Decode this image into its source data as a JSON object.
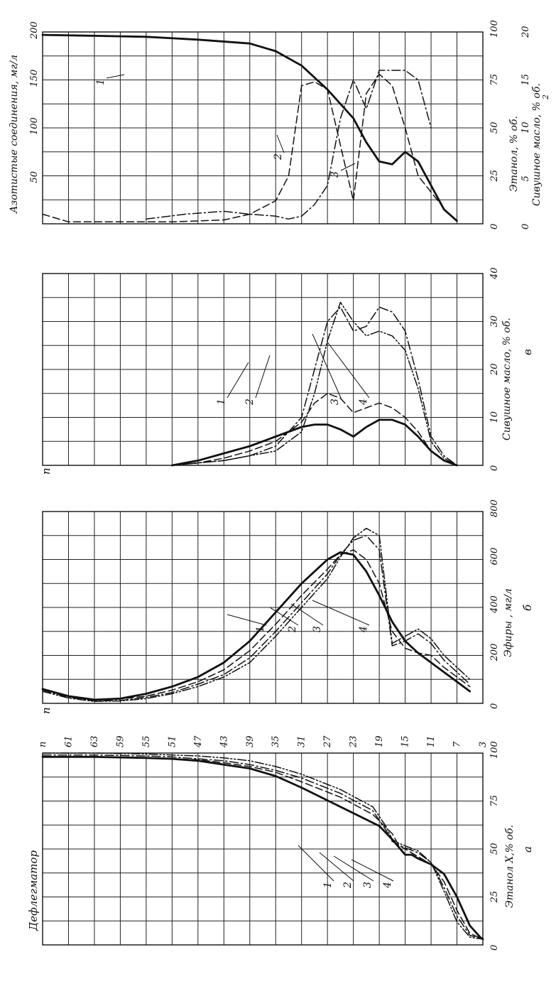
{
  "chart_data": [
    {
      "id": "a",
      "type": "line",
      "panel_letter": "а",
      "corner_label": "п",
      "header_label": "Дефлегматор",
      "xlabel": "Этанол X,% об.",
      "x_tick_labels": [
        "0",
        "25",
        "50",
        "75",
        "100"
      ],
      "plate_labels": [
        "п",
        "61",
        "63",
        "59",
        "55",
        "51",
        "47",
        "43",
        "39",
        "35",
        "31",
        "27",
        "23",
        "19",
        "15",
        "11",
        "7",
        "3"
      ],
      "xlim": [
        0,
        100
      ],
      "grid": true,
      "curve_labels": [
        "1",
        "2",
        "3",
        "4"
      ],
      "series": [
        {
          "name": "1",
          "style": "solid",
          "x": [
            98,
            98,
            97.5,
            97,
            96,
            94,
            92,
            88,
            82,
            72,
            62,
            55,
            47,
            47,
            45,
            42,
            37,
            25,
            10,
            4,
            3
          ],
          "y": [
            0,
            4,
            8,
            10,
            12,
            14,
            16,
            18,
            20,
            23,
            26,
            27,
            28,
            28.5,
            29,
            30,
            31,
            32,
            33,
            33.8,
            34
          ]
        },
        {
          "name": "2",
          "style": "dashed",
          "x": [
            98,
            98,
            97.5,
            97,
            96.5,
            95,
            93,
            90,
            85,
            77,
            68,
            58,
            52,
            50,
            46,
            42,
            33,
            18,
            6,
            3
          ],
          "y": [
            0,
            4,
            8,
            10,
            12,
            14,
            16,
            18,
            20,
            23,
            25.5,
            27,
            27.5,
            28,
            29,
            30,
            31,
            32,
            33,
            34
          ]
        },
        {
          "name": "3",
          "style": "dashdot",
          "x": [
            99,
            99,
            98.5,
            98,
            97,
            96,
            94,
            91,
            87,
            79,
            70,
            60,
            54,
            52,
            48,
            43,
            30,
            15,
            5,
            3
          ],
          "y": [
            0,
            4,
            8,
            10,
            12,
            14,
            16,
            18,
            20,
            23,
            25.5,
            26.5,
            27,
            27.5,
            29,
            30,
            31,
            32,
            33,
            34
          ]
        },
        {
          "name": "4",
          "style": "dashdotdot",
          "x": [
            100,
            100,
            99.5,
            99,
            98.5,
            97.5,
            96,
            93,
            89,
            81,
            72,
            62,
            55,
            53,
            49,
            43,
            28,
            12,
            4,
            3
          ],
          "y": [
            0,
            4,
            8,
            10,
            12,
            14,
            16,
            18,
            20,
            23,
            25.5,
            26.5,
            27,
            27.5,
            29,
            30,
            31,
            32,
            33,
            34
          ]
        }
      ]
    },
    {
      "id": "b",
      "type": "line",
      "panel_letter": "б",
      "corner_label": "п",
      "xlabel": "Эфиры , мг/л",
      "x_tick_labels": [
        "0",
        "200",
        "400",
        "600",
        "800"
      ],
      "xlim": [
        0,
        800
      ],
      "grid": true,
      "curve_labels": [
        "1",
        "2",
        "3",
        "4"
      ],
      "series": [
        {
          "name": "1",
          "style": "solid",
          "x": [
            60,
            30,
            15,
            20,
            40,
            70,
            110,
            170,
            260,
            380,
            500,
            600,
            630,
            620,
            550,
            450,
            340,
            260,
            210,
            170,
            130,
            90,
            50
          ],
          "y": [
            0,
            2,
            4,
            6,
            8,
            10,
            12,
            14,
            16,
            18,
            20,
            22,
            23,
            24,
            25,
            26,
            27,
            28,
            29,
            30,
            31,
            32,
            33
          ]
        },
        {
          "name": "2",
          "style": "dashed",
          "x": [
            60,
            30,
            15,
            18,
            30,
            55,
            90,
            140,
            220,
            330,
            450,
            560,
            620,
            640,
            600,
            500,
            300,
            230,
            210,
            200,
            150,
            110,
            70
          ],
          "y": [
            0,
            2,
            4,
            6,
            8,
            10,
            12,
            14,
            16,
            18,
            20,
            22,
            23,
            24,
            25,
            26,
            27,
            28,
            29,
            30,
            31,
            32,
            33
          ]
        },
        {
          "name": "3",
          "style": "dashdot",
          "x": [
            55,
            25,
            10,
            12,
            25,
            45,
            80,
            120,
            190,
            300,
            420,
            540,
            620,
            680,
            700,
            640,
            240,
            260,
            290,
            250,
            180,
            130,
            80
          ],
          "y": [
            0,
            2,
            4,
            6,
            8,
            10,
            12,
            14,
            16,
            18,
            20,
            22,
            23,
            24,
            25,
            26,
            27,
            28,
            29,
            30,
            31,
            32,
            33
          ]
        },
        {
          "name": "4",
          "style": "dashdotdot",
          "x": [
            50,
            22,
            8,
            10,
            20,
            40,
            70,
            110,
            170,
            280,
            400,
            520,
            610,
            690,
            730,
            700,
            250,
            280,
            310,
            270,
            200,
            150,
            100
          ],
          "y": [
            0,
            2,
            4,
            6,
            8,
            10,
            12,
            14,
            16,
            18,
            20,
            22,
            23,
            24,
            25,
            26,
            27,
            28,
            29,
            30,
            31,
            32,
            33
          ]
        }
      ]
    },
    {
      "id": "v",
      "type": "line",
      "panel_letter": "в",
      "corner_label": "п",
      "xlabel": "Сивушное масло, % об.",
      "x_tick_labels": [
        "0",
        "10",
        "20",
        "30",
        "40"
      ],
      "xlim": [
        0,
        40
      ],
      "grid": true,
      "curve_labels": [
        "1",
        "2",
        "3",
        "4"
      ],
      "series": [
        {
          "name": "1",
          "style": "solid",
          "x": [
            0,
            1,
            2.5,
            4,
            6,
            8,
            8.5,
            8.5,
            7.5,
            6,
            8,
            9.5,
            9.5,
            8.5,
            6,
            3,
            1,
            0
          ],
          "y": [
            10,
            12,
            14,
            16,
            18,
            20,
            21,
            22,
            23,
            24,
            25,
            26,
            27,
            28,
            29,
            30,
            31,
            32
          ]
        },
        {
          "name": "2",
          "style": "dashed",
          "x": [
            0,
            0.5,
            1.5,
            3,
            5,
            9,
            13,
            15,
            14,
            11,
            12,
            13,
            12,
            10,
            7,
            3,
            1,
            0
          ],
          "y": [
            10,
            12,
            14,
            16,
            18,
            20,
            21,
            22,
            23,
            24,
            25,
            26,
            27,
            28,
            29,
            30,
            31,
            32
          ]
        },
        {
          "name": "3",
          "style": "dashdot",
          "x": [
            0,
            0.5,
            1,
            2,
            4,
            10,
            20,
            30,
            33,
            28,
            29,
            33,
            32,
            28,
            18,
            6,
            2,
            0
          ],
          "y": [
            10,
            12,
            14,
            16,
            18,
            20,
            21,
            22,
            23,
            24,
            25,
            26,
            27,
            28,
            29,
            30,
            31,
            32
          ]
        },
        {
          "name": "4",
          "style": "dashdotdot",
          "x": [
            0,
            0.5,
            1,
            2,
            3,
            7,
            15,
            26,
            34,
            30,
            27,
            28,
            27,
            24,
            16,
            5,
            1.5,
            0
          ],
          "y": [
            10,
            12,
            14,
            16,
            18,
            20,
            21,
            22,
            23,
            24,
            25,
            26,
            27,
            28,
            29,
            30,
            31,
            32
          ]
        }
      ]
    },
    {
      "id": "g",
      "type": "line",
      "ylabel_left": "Азотистые соединения, мг/л",
      "left_tick_labels": [
        "50",
        "100",
        "150",
        "200"
      ],
      "xlabel_1": "Этанол, % об.",
      "x1_tick_labels": [
        "0",
        "25",
        "50",
        "75",
        "100"
      ],
      "xlabel_2": "Сивушное масло, % об.",
      "x2_tick_labels": [
        "0",
        "5",
        "10",
        "15",
        "20"
      ],
      "x2_index": "2",
      "xlim_nitrogen": [
        0,
        200
      ],
      "xlim_ethanol": [
        0,
        100
      ],
      "xlim_fusel": [
        0,
        20
      ],
      "grid": true,
      "curve_labels": [
        "1",
        "2",
        "3"
      ],
      "series": [
        {
          "name": "1",
          "style": "solid",
          "scale": "nitrogen_mg_l",
          "x": [
            197,
            196,
            195,
            192,
            188,
            180,
            165,
            140,
            110,
            85,
            65,
            62,
            75,
            65,
            40,
            15,
            3
          ],
          "y": [
            0,
            4,
            8,
            12,
            16,
            18,
            20,
            22,
            24,
            25,
            26,
            27,
            28,
            29,
            30,
            31,
            32
          ]
        },
        {
          "name": "2",
          "style": "dashed",
          "scale": "ethanol_pct",
          "x": [
            5,
            1,
            1,
            1,
            2,
            5,
            12,
            25,
            72,
            74,
            70,
            12,
            68,
            78,
            72,
            50,
            25,
            8
          ],
          "y": [
            0,
            2,
            6,
            10,
            14,
            16,
            18,
            19,
            20,
            21,
            22,
            24,
            25,
            26,
            27,
            28,
            29,
            31
          ]
        },
        {
          "name": "3",
          "style": "dashdot",
          "scale": "fusel_pct",
          "x": [
            0.5,
            1,
            1.3,
            1,
            0.8,
            0.5,
            0.8,
            2,
            4,
            11,
            15,
            12,
            16,
            16,
            15,
            10
          ],
          "y": [
            8,
            11,
            14,
            16,
            18,
            19,
            20,
            21,
            22,
            23,
            24,
            25,
            26,
            28,
            29,
            30
          ]
        }
      ]
    }
  ]
}
